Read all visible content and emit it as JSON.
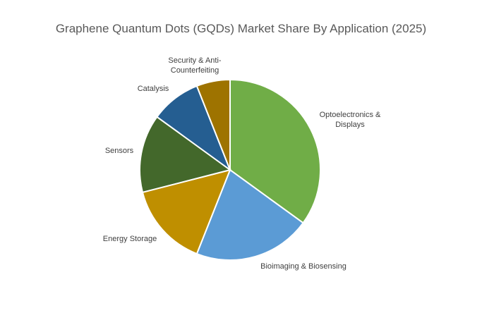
{
  "chart_data": {
    "type": "pie",
    "title": "Graphene Quantum Dots (GQDs) Market Share By Application (2025)",
    "categories": [
      "Optoelectronics & Displays",
      "Bioimaging & Biosensing",
      "Energy Storage",
      "Sensors",
      "Catalysis",
      "Security & Anti-Counterfeiting"
    ],
    "values": [
      35,
      21,
      15,
      14,
      9,
      6
    ],
    "colors": [
      "#70ad47",
      "#5b9bd5",
      "#bf8f00",
      "#43682b",
      "#255e91",
      "#9e7300"
    ]
  }
}
